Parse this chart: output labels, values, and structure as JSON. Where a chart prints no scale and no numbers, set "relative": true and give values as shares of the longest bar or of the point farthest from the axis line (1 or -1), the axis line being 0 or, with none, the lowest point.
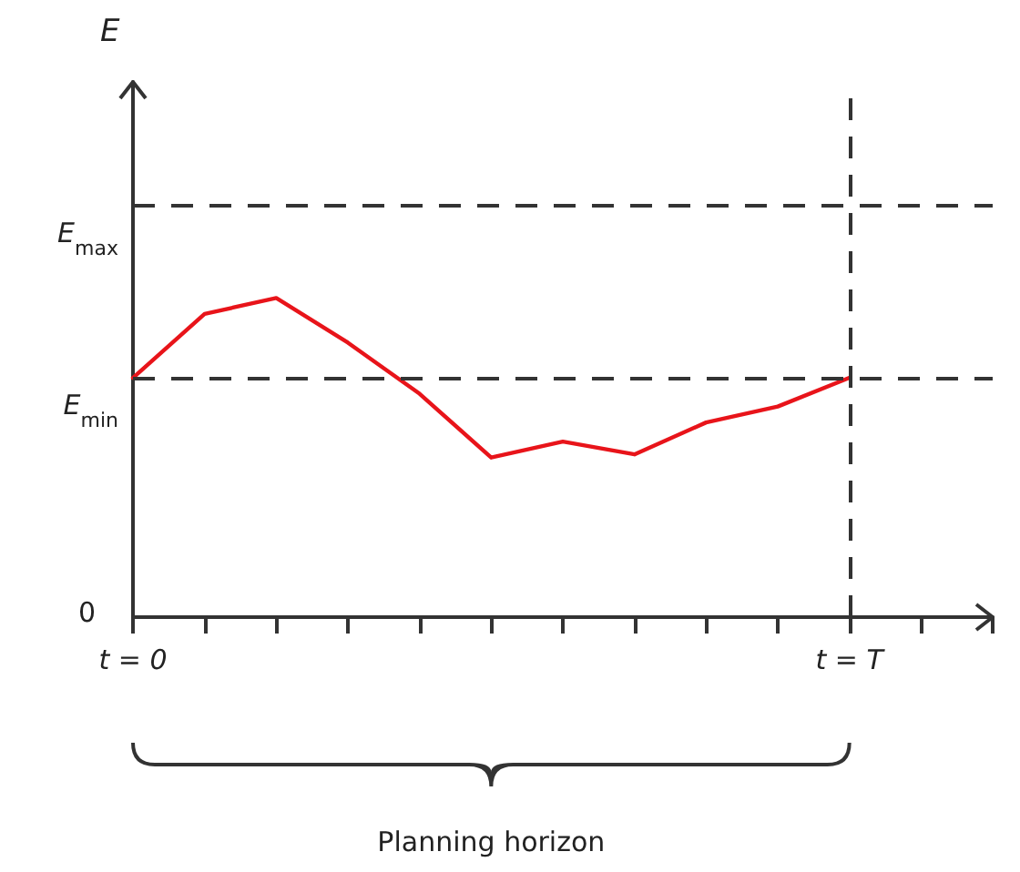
{
  "chart_data": {
    "type": "line",
    "relative": true,
    "annotations": [
      "E",
      "0",
      "Planning horizon"
    ],
    "categories": [
      "t = 0",
      null,
      null,
      null,
      null,
      null,
      null,
      null,
      null,
      null,
      "t = T"
    ],
    "series": [
      {
        "color": "#e8141a",
        "values": [
          0.75,
          0.95,
          1,
          0.86,
          0.7,
          0.5,
          0.55,
          0.51,
          0.61,
          0.66,
          0.75
        ]
      }
    ],
    "ref_lines": [
      {
        "axis": "y",
        "value": 1.29,
        "label": "E$_{max}$",
        "color": "#333333",
        "line_style": "dashed"
      },
      {
        "axis": "y",
        "value": 0.75,
        "label": "E$_{min}$",
        "color": "#333333",
        "line_style": "dashed"
      },
      {
        "axis": "x",
        "value": "t = T",
        "label": null,
        "color": "#333333",
        "line_style": "dashed"
      }
    ],
    "grid": false,
    "marker": "none",
    "line_style": "solid"
  }
}
